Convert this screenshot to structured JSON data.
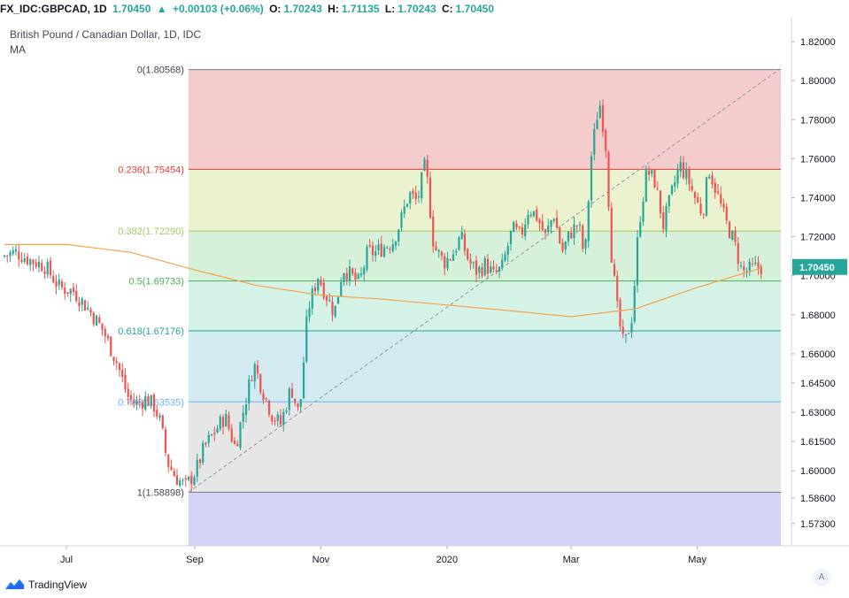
{
  "header": {
    "symbol": "FX_IDC:GBPCAD, 1D",
    "last": "1.70450",
    "change_icon": "triangle-up-icon",
    "change": "+0.00103 (+0.06%)",
    "open_label": "O:",
    "open": "1.70243",
    "high_label": "H:",
    "high": "1.71135",
    "low_label": "L:",
    "low": "1.70243",
    "close_label": "C:",
    "close": "1.70450"
  },
  "legend": {
    "title": "British Pound / Canadian Dollar, 1D, IDC",
    "indicator": "MA"
  },
  "price_badge": "1.70450",
  "auto_button": "A",
  "branding": "TradingView",
  "colors": {
    "up": "#26a69a",
    "down": "#ef5350",
    "ma": "#f5a24b",
    "fib_0_236": "#f4cccc",
    "fib_236_382": "#eaf2cf",
    "fib_382_5": "#d7f0d9",
    "fib_5_618": "#d4f2e6",
    "fib_618_786": "#d3eaf1",
    "fib_786_1": "#e6e6e6",
    "fib_below_1": "#d3d3f4"
  },
  "chart_data": {
    "type": "candlestick",
    "y_axis_labels": [
      "1.82000",
      "1.80000",
      "1.78000",
      "1.76000",
      "1.74000",
      "1.72000",
      "1.70000",
      "1.68000",
      "1.66000",
      "1.64500",
      "1.63000",
      "1.61500",
      "1.60000",
      "1.58600",
      "1.57300"
    ],
    "ylim": [
      1.567,
      1.83
    ],
    "x_axis_labels": [
      "Jul",
      "Sep",
      "Nov",
      "2020",
      "Mar",
      "May"
    ],
    "fib_levels": [
      {
        "ratio": "0",
        "label": "0(1.80568)",
        "price": 1.80568
      },
      {
        "ratio": "0.236",
        "label": "0.236(1.75454)",
        "price": 1.75454
      },
      {
        "ratio": "0.382",
        "label": "0.382(1.72290)",
        "price": 1.7229
      },
      {
        "ratio": "0.5",
        "label": "0.5(1.69733)",
        "price": 1.69733
      },
      {
        "ratio": "0.618",
        "label": "0.618(1.67176)",
        "price": 1.67176
      },
      {
        "ratio": "0.786",
        "label": "0.786(1.63535)",
        "price": 1.63535
      },
      {
        "ratio": "1",
        "label": "1(1.58898)",
        "price": 1.58898
      }
    ],
    "price_path": [
      [
        "2019-06-01",
        1.71
      ],
      [
        "2019-06-08",
        1.712
      ],
      [
        "2019-06-15",
        1.708
      ],
      [
        "2019-06-22",
        1.705
      ],
      [
        "2019-06-29",
        1.694
      ],
      [
        "2019-07-06",
        1.692
      ],
      [
        "2019-07-13",
        1.683
      ],
      [
        "2019-07-20",
        1.672
      ],
      [
        "2019-07-27",
        1.655
      ],
      [
        "2019-08-01",
        1.638
      ],
      [
        "2019-08-05",
        1.634
      ],
      [
        "2019-08-10",
        1.637
      ],
      [
        "2019-08-14",
        1.633
      ],
      [
        "2019-08-17",
        1.624
      ],
      [
        "2019-08-20",
        1.605
      ],
      [
        "2019-08-24",
        1.597
      ],
      [
        "2019-08-29",
        1.592
      ],
      [
        "2019-09-03",
        1.6
      ],
      [
        "2019-09-07",
        1.612
      ],
      [
        "2019-09-12",
        1.62
      ],
      [
        "2019-09-17",
        1.628
      ],
      [
        "2019-09-22",
        1.612
      ],
      [
        "2019-09-26",
        1.631
      ],
      [
        "2019-10-01",
        1.655
      ],
      [
        "2019-10-05",
        1.642
      ],
      [
        "2019-10-10",
        1.628
      ],
      [
        "2019-10-14",
        1.624
      ],
      [
        "2019-10-19",
        1.643
      ],
      [
        "2019-10-23",
        1.628
      ],
      [
        "2019-10-27",
        1.682
      ],
      [
        "2019-11-01",
        1.7
      ],
      [
        "2019-11-05",
        1.69
      ],
      [
        "2019-11-09",
        1.681
      ],
      [
        "2019-11-13",
        1.704
      ],
      [
        "2019-11-17",
        1.7
      ],
      [
        "2019-11-21",
        1.696
      ],
      [
        "2019-11-25",
        1.712
      ],
      [
        "2019-11-29",
        1.712
      ],
      [
        "2019-12-03",
        1.715
      ],
      [
        "2019-12-07",
        1.717
      ],
      [
        "2019-12-11",
        1.728
      ],
      [
        "2019-12-15",
        1.742
      ],
      [
        "2019-12-19",
        1.738
      ],
      [
        "2019-12-23",
        1.758
      ],
      [
        "2019-12-27",
        1.715
      ],
      [
        "2020-01-01",
        1.707
      ],
      [
        "2020-01-05",
        1.711
      ],
      [
        "2020-01-09",
        1.72
      ],
      [
        "2020-01-13",
        1.707
      ],
      [
        "2020-01-17",
        1.702
      ],
      [
        "2020-01-21",
        1.706
      ],
      [
        "2020-01-25",
        1.7
      ],
      [
        "2020-01-29",
        1.704
      ],
      [
        "2020-02-03",
        1.724
      ],
      [
        "2020-02-07",
        1.72
      ],
      [
        "2020-02-11",
        1.735
      ],
      [
        "2020-02-15",
        1.73
      ],
      [
        "2020-02-19",
        1.72
      ],
      [
        "2020-02-23",
        1.732
      ],
      [
        "2020-02-27",
        1.712
      ],
      [
        "2020-03-02",
        1.722
      ],
      [
        "2020-03-06",
        1.727
      ],
      [
        "2020-03-09",
        1.708
      ],
      [
        "2020-03-12",
        1.76
      ],
      [
        "2020-03-16",
        1.79
      ],
      [
        "2020-03-19",
        1.77
      ],
      [
        "2020-03-22",
        1.71
      ],
      [
        "2020-03-25",
        1.68
      ],
      [
        "2020-03-28",
        1.663
      ],
      [
        "2020-04-01",
        1.68
      ],
      [
        "2020-04-04",
        1.725
      ],
      [
        "2020-04-08",
        1.754
      ],
      [
        "2020-04-12",
        1.748
      ],
      [
        "2020-04-16",
        1.726
      ],
      [
        "2020-04-20",
        1.742
      ],
      [
        "2020-04-24",
        1.757
      ],
      [
        "2020-04-28",
        1.749
      ],
      [
        "2020-05-02",
        1.738
      ],
      [
        "2020-05-05",
        1.732
      ],
      [
        "2020-05-08",
        1.755
      ],
      [
        "2020-05-12",
        1.742
      ],
      [
        "2020-05-16",
        1.728
      ],
      [
        "2020-05-20",
        1.718
      ],
      [
        "2020-05-24",
        1.702
      ],
      [
        "2020-05-28",
        1.703
      ],
      [
        "2020-06-01",
        1.7045
      ]
    ],
    "ma_path": [
      [
        "2019-06-01",
        1.716
      ],
      [
        "2019-07-01",
        1.716
      ],
      [
        "2019-08-01",
        1.712
      ],
      [
        "2019-09-01",
        1.703
      ],
      [
        "2019-10-01",
        1.695
      ],
      [
        "2019-11-01",
        1.69
      ],
      [
        "2019-12-01",
        1.688
      ],
      [
        "2020-01-01",
        1.685
      ],
      [
        "2020-02-01",
        1.682
      ],
      [
        "2020-03-01",
        1.679
      ],
      [
        "2020-04-01",
        1.683
      ],
      [
        "2020-05-01",
        1.694
      ],
      [
        "2020-06-01",
        1.704
      ]
    ],
    "trend_line": [
      [
        "2019-08-29",
        1.58898
      ],
      [
        "2020-06-15",
        1.80568
      ]
    ]
  }
}
